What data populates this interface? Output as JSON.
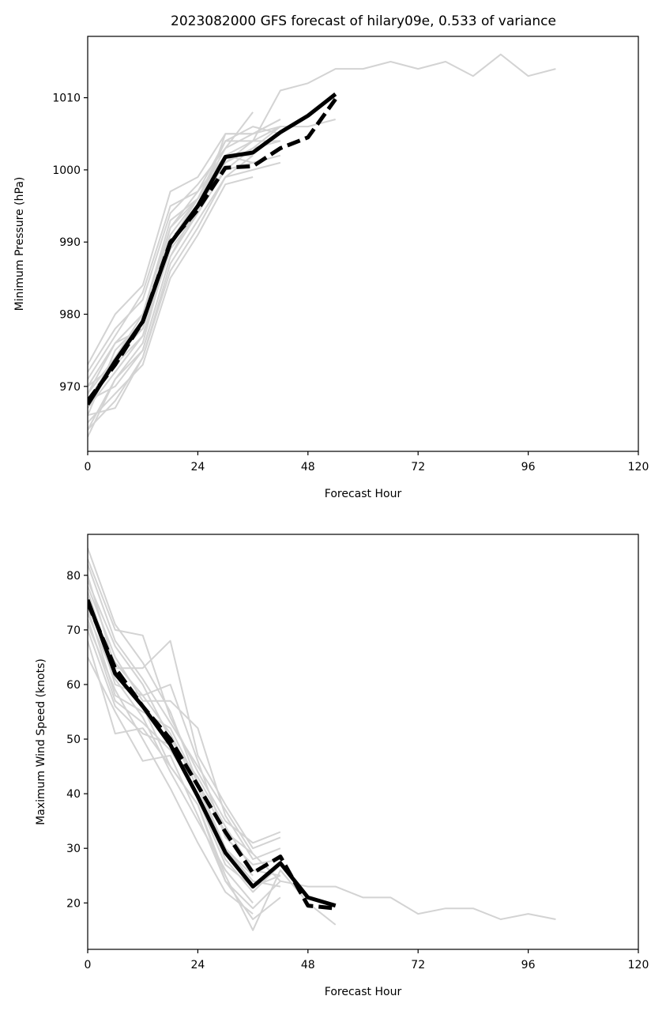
{
  "figure_title": "2023082000 GFS forecast of hilary09e, 0.533 of variance",
  "colors": {
    "ensemble": "#d3d3d3",
    "mean": "#000000",
    "reference": "#000000",
    "axes": "#000000"
  },
  "chart_data": [
    {
      "type": "line",
      "title": "2023082000 GFS forecast of hilary09e, 0.533 of variance",
      "xlabel": "Forecast Hour",
      "ylabel": "Minimum Pressure (hPa)",
      "xlim": [
        0,
        120
      ],
      "ylim": [
        961,
        1018.5
      ],
      "xticks": [
        0,
        24,
        48,
        72,
        96,
        120
      ],
      "yticks": [
        970,
        980,
        990,
        1000,
        1010
      ],
      "grid": false,
      "ensemble": [
        {
          "x": [
            0,
            6,
            12,
            18,
            24,
            30,
            36,
            42,
            48,
            54,
            60,
            66,
            72,
            78,
            84,
            90,
            96,
            102
          ],
          "y": [
            964,
            971,
            976,
            990,
            996,
            1004,
            1004,
            1011,
            1012,
            1014,
            1014,
            1015,
            1014,
            1015,
            1013,
            1016,
            1013,
            1014
          ]
        },
        {
          "x": [
            0,
            6,
            12,
            18,
            24,
            30,
            36,
            42
          ],
          "y": [
            963,
            971,
            975,
            988,
            994,
            1005,
            1005,
            1007
          ]
        },
        {
          "x": [
            0,
            6,
            12,
            18,
            24,
            30,
            36
          ],
          "y": [
            966,
            975,
            979,
            991,
            996,
            1003,
            1008
          ]
        },
        {
          "x": [
            0,
            6,
            12,
            18,
            24,
            30,
            36,
            42
          ],
          "y": [
            968,
            974,
            978,
            990,
            995,
            1001,
            1003,
            1006
          ]
        },
        {
          "x": [
            0,
            6,
            12,
            18,
            24,
            30,
            36,
            42,
            48,
            54
          ],
          "y": [
            970,
            976,
            980,
            992,
            997,
            1002,
            1004,
            1006,
            1006,
            1007
          ]
        },
        {
          "x": [
            0,
            6,
            12,
            18,
            24,
            30,
            36,
            42
          ],
          "y": [
            972,
            978,
            982,
            994,
            998,
            1003,
            1005,
            1006
          ]
        },
        {
          "x": [
            0,
            6,
            12,
            18,
            24,
            30,
            36,
            42
          ],
          "y": [
            973,
            980,
            984,
            997,
            999,
            1005,
            1005,
            1007
          ]
        },
        {
          "x": [
            0,
            6,
            12,
            18,
            24,
            30,
            36
          ],
          "y": [
            969,
            976,
            978,
            992,
            996,
            1002,
            1001
          ]
        },
        {
          "x": [
            0,
            6,
            12,
            18,
            24,
            30,
            36,
            42
          ],
          "y": [
            967,
            972,
            977,
            990,
            994,
            1000,
            1001,
            1002
          ]
        },
        {
          "x": [
            0,
            6,
            12,
            18,
            24,
            30,
            36,
            42
          ],
          "y": [
            966,
            967,
            974,
            987,
            993,
            999,
            1000,
            1001
          ]
        },
        {
          "x": [
            0,
            6,
            12,
            18,
            24,
            30,
            36
          ],
          "y": [
            965,
            969,
            973,
            985,
            991,
            998,
            999
          ]
        },
        {
          "x": [
            0,
            6,
            12,
            18,
            24,
            30,
            36,
            42
          ],
          "y": [
            968,
            970,
            975,
            988,
            995,
            1000,
            1003,
            1004
          ]
        },
        {
          "x": [
            0,
            6,
            12,
            18,
            24,
            30,
            36
          ],
          "y": [
            970,
            973,
            977,
            989,
            994,
            1002,
            1002
          ]
        },
        {
          "x": [
            0,
            6,
            12,
            18,
            24,
            30,
            36,
            42
          ],
          "y": [
            971,
            977,
            983,
            995,
            997,
            1004,
            1006,
            1005
          ]
        },
        {
          "x": [
            0,
            6,
            12,
            18,
            24,
            30,
            36
          ],
          "y": [
            964,
            968,
            974,
            986,
            992,
            999,
            1002
          ]
        },
        {
          "x": [
            0,
            6,
            12,
            18,
            24,
            30,
            36,
            42
          ],
          "y": [
            969,
            974,
            980,
            993,
            996,
            1001,
            1004,
            1004
          ]
        }
      ],
      "series": [
        {
          "name": "",
          "style": "solid",
          "x": [
            0,
            6,
            12,
            18,
            24,
            30,
            36,
            42,
            48,
            54
          ],
          "y": [
            967.5,
            973.5,
            979,
            989.8,
            995,
            1001.8,
            1002.4,
            1005.2,
            1007.5,
            1010.5
          ]
        },
        {
          "name": "",
          "style": "dashed",
          "x": [
            0,
            6,
            12,
            18,
            24,
            30,
            36,
            42,
            48,
            54
          ],
          "y": [
            968,
            973,
            979,
            990,
            994.5,
            1000.3,
            1000.5,
            1003,
            1004.5,
            1009.8
          ]
        }
      ]
    },
    {
      "type": "line",
      "title": "",
      "xlabel": "Forecast Hour",
      "ylabel": "Maximum Wind Speed (knots)",
      "xlim": [
        0,
        120
      ],
      "ylim": [
        11.5,
        87.5
      ],
      "xticks": [
        0,
        24,
        48,
        72,
        96,
        120
      ],
      "yticks": [
        20,
        30,
        40,
        50,
        60,
        70,
        80
      ],
      "grid": false,
      "ensemble": [
        {
          "x": [
            0,
            6,
            12,
            18,
            24,
            30,
            36,
            42,
            48,
            54,
            60,
            66,
            72,
            78,
            84,
            90,
            96,
            102
          ],
          "y": [
            85,
            71,
            64,
            55,
            42,
            33,
            29,
            24,
            23,
            23,
            21,
            21,
            18,
            19,
            19,
            17,
            18,
            17
          ]
        },
        {
          "x": [
            0,
            6,
            12,
            18,
            24,
            30,
            36,
            42
          ],
          "y": [
            83,
            70,
            69,
            54,
            44,
            35,
            31,
            33
          ]
        },
        {
          "x": [
            0,
            6,
            12,
            18,
            24,
            30,
            36,
            42
          ],
          "y": [
            80,
            63,
            63,
            68,
            47,
            38,
            30,
            32
          ]
        },
        {
          "x": [
            0,
            6,
            12,
            18,
            24,
            30,
            36,
            42
          ],
          "y": [
            78,
            65,
            57,
            57,
            52,
            36,
            28,
            30
          ]
        },
        {
          "x": [
            0,
            6,
            12,
            18,
            24,
            30,
            36,
            42
          ],
          "y": [
            76,
            60,
            58,
            60,
            46,
            32,
            27,
            28
          ]
        },
        {
          "x": [
            0,
            6,
            12,
            18,
            24,
            30,
            36
          ],
          "y": [
            74,
            58,
            55,
            52,
            42,
            30,
            25
          ]
        },
        {
          "x": [
            0,
            6,
            12,
            18,
            24,
            30,
            36,
            42
          ],
          "y": [
            72,
            57,
            53,
            48,
            40,
            28,
            22,
            27
          ]
        },
        {
          "x": [
            0,
            6,
            12,
            18,
            24,
            30,
            36,
            42
          ],
          "y": [
            70,
            56,
            51,
            49,
            39,
            27,
            23,
            25
          ]
        },
        {
          "x": [
            0,
            6,
            12,
            18,
            24,
            30,
            36,
            42,
            48,
            54
          ],
          "y": [
            68,
            51,
            52,
            45,
            38,
            25,
            15,
            26,
            20,
            16
          ]
        },
        {
          "x": [
            0,
            6,
            12,
            18,
            24,
            30,
            36,
            42
          ],
          "y": [
            65,
            55,
            46,
            47,
            36,
            24,
            17,
            21
          ]
        },
        {
          "x": [
            0,
            6,
            12,
            18,
            24,
            30,
            36
          ],
          "y": [
            73,
            61,
            54,
            44,
            35,
            26,
            20
          ]
        },
        {
          "x": [
            0,
            6,
            12,
            18,
            24,
            30,
            36,
            42
          ],
          "y": [
            79,
            67,
            60,
            50,
            43,
            34,
            26,
            25
          ]
        },
        {
          "x": [
            0,
            6,
            12,
            18,
            24,
            30,
            36,
            42
          ],
          "y": [
            77,
            62,
            56,
            45,
            38,
            24,
            19,
            24
          ]
        },
        {
          "x": [
            0,
            6,
            12,
            18,
            24,
            30,
            36
          ],
          "y": [
            71,
            59,
            50,
            41,
            31,
            22,
            18
          ]
        },
        {
          "x": [
            0,
            6,
            12,
            18,
            24,
            30,
            36,
            42
          ],
          "y": [
            75,
            64,
            58,
            51,
            41,
            30,
            24,
            23
          ]
        },
        {
          "x": [
            0,
            6,
            12,
            18,
            24,
            30,
            36
          ],
          "y": [
            82,
            68,
            61,
            53,
            45,
            37,
            29
          ]
        }
      ],
      "series": [
        {
          "name": "",
          "style": "solid",
          "x": [
            0,
            6,
            12,
            18,
            24,
            30,
            36,
            42,
            48,
            54
          ],
          "y": [
            75.5,
            62,
            56,
            49,
            39.5,
            29.2,
            23,
            27.3,
            21,
            19.5
          ]
        },
        {
          "name": "",
          "style": "dashed",
          "x": [
            0,
            6,
            12,
            18,
            24,
            30,
            36,
            42,
            48,
            54
          ],
          "y": [
            75,
            63,
            56,
            50,
            41.5,
            33,
            25.5,
            28.5,
            19.5,
            19
          ]
        }
      ]
    }
  ]
}
